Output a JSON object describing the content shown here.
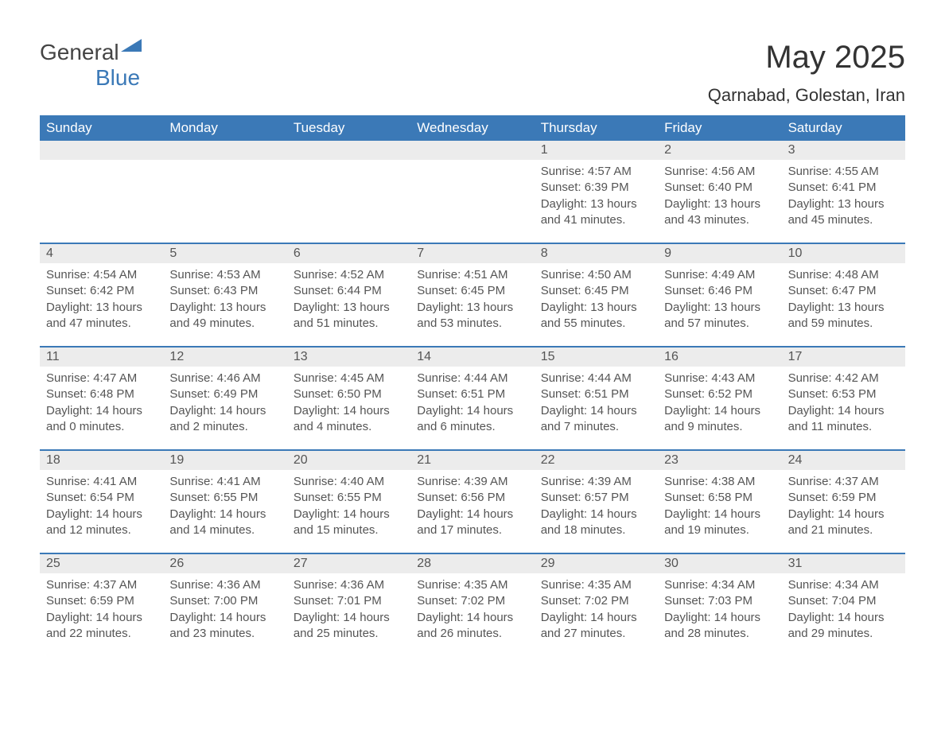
{
  "logo": {
    "word1": "General",
    "word2": "Blue"
  },
  "header": {
    "month": "May 2025",
    "location": "Qarnabad, Golestan, Iran"
  },
  "colors": {
    "brand": "#3b79b7",
    "header_text": "#ffffff",
    "daynum_bg": "#ececec",
    "body_text": "#555555",
    "title_text": "#333333",
    "page_bg": "#ffffff"
  },
  "layout": {
    "columns": 7,
    "rows": 5,
    "first_weekday_index": 4
  },
  "weekdays": [
    "Sunday",
    "Monday",
    "Tuesday",
    "Wednesday",
    "Thursday",
    "Friday",
    "Saturday"
  ],
  "weeks": [
    [
      null,
      null,
      null,
      null,
      {
        "n": "1",
        "sunrise": "Sunrise: 4:57 AM",
        "sunset": "Sunset: 6:39 PM",
        "dl1": "Daylight: 13 hours",
        "dl2": "and 41 minutes."
      },
      {
        "n": "2",
        "sunrise": "Sunrise: 4:56 AM",
        "sunset": "Sunset: 6:40 PM",
        "dl1": "Daylight: 13 hours",
        "dl2": "and 43 minutes."
      },
      {
        "n": "3",
        "sunrise": "Sunrise: 4:55 AM",
        "sunset": "Sunset: 6:41 PM",
        "dl1": "Daylight: 13 hours",
        "dl2": "and 45 minutes."
      }
    ],
    [
      {
        "n": "4",
        "sunrise": "Sunrise: 4:54 AM",
        "sunset": "Sunset: 6:42 PM",
        "dl1": "Daylight: 13 hours",
        "dl2": "and 47 minutes."
      },
      {
        "n": "5",
        "sunrise": "Sunrise: 4:53 AM",
        "sunset": "Sunset: 6:43 PM",
        "dl1": "Daylight: 13 hours",
        "dl2": "and 49 minutes."
      },
      {
        "n": "6",
        "sunrise": "Sunrise: 4:52 AM",
        "sunset": "Sunset: 6:44 PM",
        "dl1": "Daylight: 13 hours",
        "dl2": "and 51 minutes."
      },
      {
        "n": "7",
        "sunrise": "Sunrise: 4:51 AM",
        "sunset": "Sunset: 6:45 PM",
        "dl1": "Daylight: 13 hours",
        "dl2": "and 53 minutes."
      },
      {
        "n": "8",
        "sunrise": "Sunrise: 4:50 AM",
        "sunset": "Sunset: 6:45 PM",
        "dl1": "Daylight: 13 hours",
        "dl2": "and 55 minutes."
      },
      {
        "n": "9",
        "sunrise": "Sunrise: 4:49 AM",
        "sunset": "Sunset: 6:46 PM",
        "dl1": "Daylight: 13 hours",
        "dl2": "and 57 minutes."
      },
      {
        "n": "10",
        "sunrise": "Sunrise: 4:48 AM",
        "sunset": "Sunset: 6:47 PM",
        "dl1": "Daylight: 13 hours",
        "dl2": "and 59 minutes."
      }
    ],
    [
      {
        "n": "11",
        "sunrise": "Sunrise: 4:47 AM",
        "sunset": "Sunset: 6:48 PM",
        "dl1": "Daylight: 14 hours",
        "dl2": "and 0 minutes."
      },
      {
        "n": "12",
        "sunrise": "Sunrise: 4:46 AM",
        "sunset": "Sunset: 6:49 PM",
        "dl1": "Daylight: 14 hours",
        "dl2": "and 2 minutes."
      },
      {
        "n": "13",
        "sunrise": "Sunrise: 4:45 AM",
        "sunset": "Sunset: 6:50 PM",
        "dl1": "Daylight: 14 hours",
        "dl2": "and 4 minutes."
      },
      {
        "n": "14",
        "sunrise": "Sunrise: 4:44 AM",
        "sunset": "Sunset: 6:51 PM",
        "dl1": "Daylight: 14 hours",
        "dl2": "and 6 minutes."
      },
      {
        "n": "15",
        "sunrise": "Sunrise: 4:44 AM",
        "sunset": "Sunset: 6:51 PM",
        "dl1": "Daylight: 14 hours",
        "dl2": "and 7 minutes."
      },
      {
        "n": "16",
        "sunrise": "Sunrise: 4:43 AM",
        "sunset": "Sunset: 6:52 PM",
        "dl1": "Daylight: 14 hours",
        "dl2": "and 9 minutes."
      },
      {
        "n": "17",
        "sunrise": "Sunrise: 4:42 AM",
        "sunset": "Sunset: 6:53 PM",
        "dl1": "Daylight: 14 hours",
        "dl2": "and 11 minutes."
      }
    ],
    [
      {
        "n": "18",
        "sunrise": "Sunrise: 4:41 AM",
        "sunset": "Sunset: 6:54 PM",
        "dl1": "Daylight: 14 hours",
        "dl2": "and 12 minutes."
      },
      {
        "n": "19",
        "sunrise": "Sunrise: 4:41 AM",
        "sunset": "Sunset: 6:55 PM",
        "dl1": "Daylight: 14 hours",
        "dl2": "and 14 minutes."
      },
      {
        "n": "20",
        "sunrise": "Sunrise: 4:40 AM",
        "sunset": "Sunset: 6:55 PM",
        "dl1": "Daylight: 14 hours",
        "dl2": "and 15 minutes."
      },
      {
        "n": "21",
        "sunrise": "Sunrise: 4:39 AM",
        "sunset": "Sunset: 6:56 PM",
        "dl1": "Daylight: 14 hours",
        "dl2": "and 17 minutes."
      },
      {
        "n": "22",
        "sunrise": "Sunrise: 4:39 AM",
        "sunset": "Sunset: 6:57 PM",
        "dl1": "Daylight: 14 hours",
        "dl2": "and 18 minutes."
      },
      {
        "n": "23",
        "sunrise": "Sunrise: 4:38 AM",
        "sunset": "Sunset: 6:58 PM",
        "dl1": "Daylight: 14 hours",
        "dl2": "and 19 minutes."
      },
      {
        "n": "24",
        "sunrise": "Sunrise: 4:37 AM",
        "sunset": "Sunset: 6:59 PM",
        "dl1": "Daylight: 14 hours",
        "dl2": "and 21 minutes."
      }
    ],
    [
      {
        "n": "25",
        "sunrise": "Sunrise: 4:37 AM",
        "sunset": "Sunset: 6:59 PM",
        "dl1": "Daylight: 14 hours",
        "dl2": "and 22 minutes."
      },
      {
        "n": "26",
        "sunrise": "Sunrise: 4:36 AM",
        "sunset": "Sunset: 7:00 PM",
        "dl1": "Daylight: 14 hours",
        "dl2": "and 23 minutes."
      },
      {
        "n": "27",
        "sunrise": "Sunrise: 4:36 AM",
        "sunset": "Sunset: 7:01 PM",
        "dl1": "Daylight: 14 hours",
        "dl2": "and 25 minutes."
      },
      {
        "n": "28",
        "sunrise": "Sunrise: 4:35 AM",
        "sunset": "Sunset: 7:02 PM",
        "dl1": "Daylight: 14 hours",
        "dl2": "and 26 minutes."
      },
      {
        "n": "29",
        "sunrise": "Sunrise: 4:35 AM",
        "sunset": "Sunset: 7:02 PM",
        "dl1": "Daylight: 14 hours",
        "dl2": "and 27 minutes."
      },
      {
        "n": "30",
        "sunrise": "Sunrise: 4:34 AM",
        "sunset": "Sunset: 7:03 PM",
        "dl1": "Daylight: 14 hours",
        "dl2": "and 28 minutes."
      },
      {
        "n": "31",
        "sunrise": "Sunrise: 4:34 AM",
        "sunset": "Sunset: 7:04 PM",
        "dl1": "Daylight: 14 hours",
        "dl2": "and 29 minutes."
      }
    ]
  ]
}
